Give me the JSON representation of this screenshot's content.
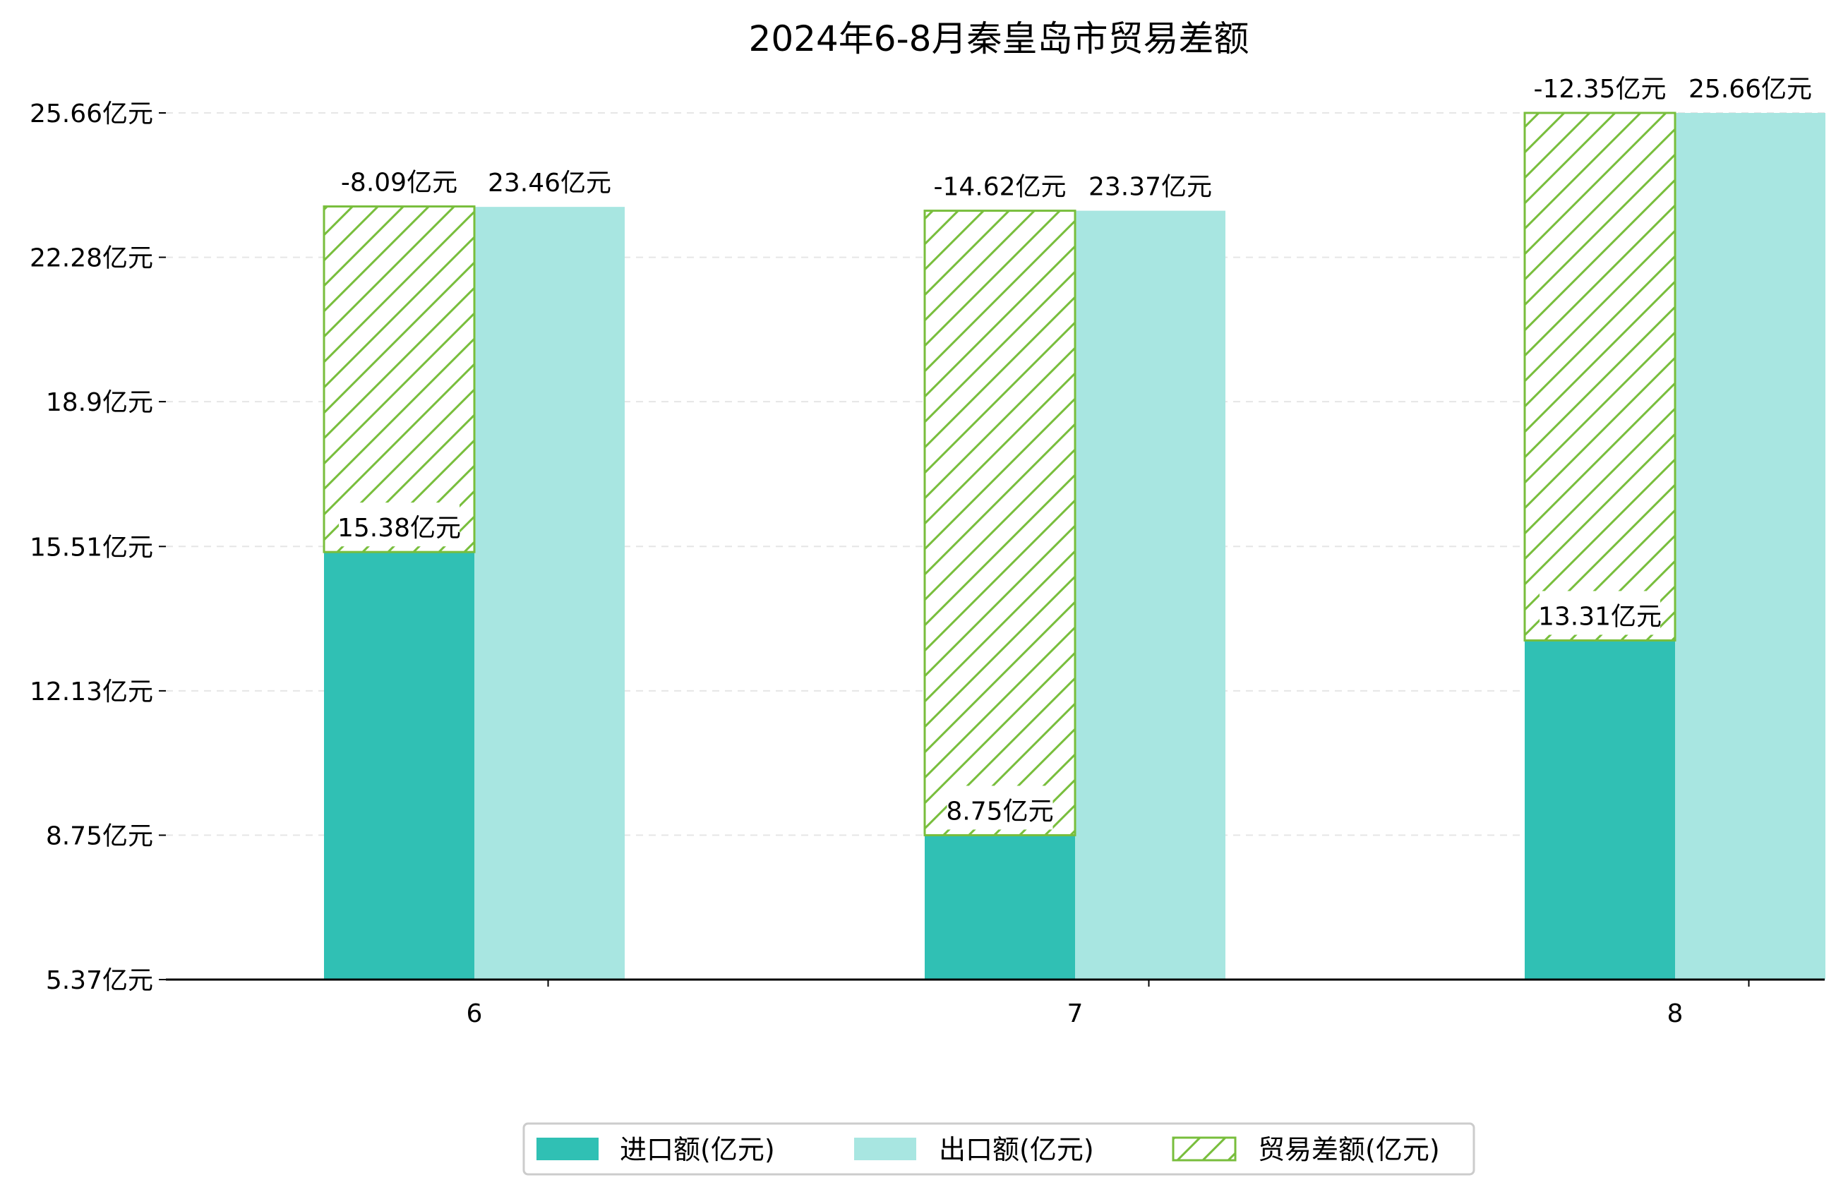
{
  "chart_data": {
    "type": "bar",
    "title": "2024年6-8月秦皇岛市贸易差额",
    "categories": [
      "6",
      "7",
      "8"
    ],
    "series": [
      {
        "name": "进口额(亿元)",
        "values": [
          15.38,
          8.75,
          13.31
        ],
        "labels": [
          "15.38亿元",
          "8.75亿元",
          "13.31亿元"
        ],
        "color": "#30C0B4"
      },
      {
        "name": "出口额(亿元)",
        "values": [
          23.46,
          23.37,
          25.66
        ],
        "labels": [
          "23.46亿元",
          "23.37亿元",
          "25.66亿元"
        ],
        "color": "#A8E6E1"
      },
      {
        "name": "贸易差额(亿元)",
        "values": [
          -8.09,
          -14.62,
          -12.35
        ],
        "labels": [
          "-8.09亿元",
          "-14.62亿元",
          "-12.35亿元"
        ],
        "color": "#78BE3C",
        "pattern": "hatch"
      }
    ],
    "yticks": [
      5.37,
      8.75,
      12.13,
      15.51,
      18.9,
      22.28,
      25.66
    ],
    "ytick_labels": [
      "5.37亿元",
      "8.75亿元",
      "12.13亿元",
      "15.51亿元",
      "18.9亿元",
      "22.28亿元",
      "25.66亿元"
    ],
    "ylim": [
      5.37,
      25.66
    ],
    "grid": true,
    "legend_position": "bottom-center"
  }
}
